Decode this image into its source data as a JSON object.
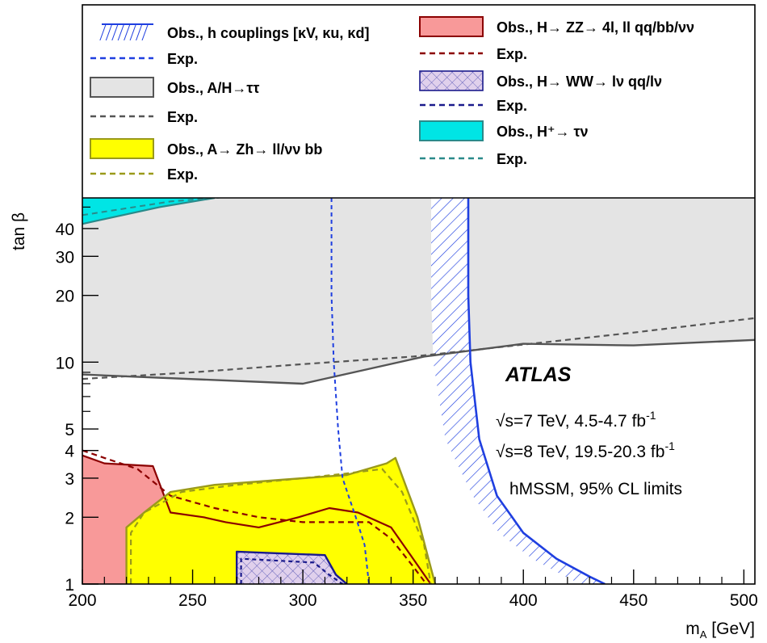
{
  "chart_data": {
    "type": "area",
    "title": "",
    "xlabel": "m_A [GeV]",
    "ylabel": "tan β",
    "xlim": [
      200,
      505
    ],
    "ylim": [
      1,
      55
    ],
    "y_scale": "log",
    "grid": false,
    "legend_position": "top",
    "x_ticks": [
      "200",
      "250",
      "300",
      "350",
      "400",
      "450",
      "500"
    ],
    "y_ticks": [
      "1",
      "2",
      "3",
      "4",
      "5",
      "10",
      "20",
      "30",
      "40"
    ],
    "annotations": {
      "experiment": "ATLAS",
      "line1_pre": "s=7 TeV, 4.5-4.7 fb",
      "line1_sup": "-1",
      "line2_pre": "s=8 TeV, 19.5-20.3 fb",
      "line2_sup": "-1",
      "line3": "hMSSM, 95% CL limits",
      "sqrt_symbol": "√"
    },
    "legend": [
      {
        "key": "h_obs",
        "label": "Obs., h couplings [κV, κu, κd]",
        "style": "hatch",
        "color": "#1f3fe0"
      },
      {
        "key": "h_exp",
        "label": "Exp.",
        "style": "dashed",
        "color": "#1f3fe0"
      },
      {
        "key": "tautau_obs",
        "label": "Obs., A/H→ττ",
        "style": "fill",
        "color": "#e4e4e4",
        "line": "#555555"
      },
      {
        "key": "tautau_exp",
        "label": "Exp.",
        "style": "dashed",
        "color": "#555555"
      },
      {
        "key": "azh_obs",
        "label": "Obs., A→ Zh→ ll/νν bb",
        "style": "fill",
        "color": "#ffff00",
        "line": "#9a9a1a"
      },
      {
        "key": "azh_exp",
        "label": "Exp.",
        "style": "dashed",
        "color": "#9a9a1a"
      },
      {
        "key": "zz_obs",
        "label": "Obs., H→ ZZ→ 4l, ll qq/bb/νν",
        "style": "fill",
        "color": "#f89999",
        "line": "#8b0000"
      },
      {
        "key": "zz_exp",
        "label": "Exp.",
        "style": "dashed",
        "color": "#8b0000"
      },
      {
        "key": "ww_obs",
        "label": "Obs., H→ WW→ lν qq/lν",
        "style": "crosshatch",
        "color": "#1a1a8c"
      },
      {
        "key": "ww_exp",
        "label": "Exp.",
        "style": "dashed",
        "color": "#1a1a8c"
      },
      {
        "key": "hplus_obs",
        "label": "Obs., H⁺→ τν",
        "style": "fill",
        "color": "#00e5e5",
        "line": "#2a8a8a"
      },
      {
        "key": "hplus_exp",
        "label": "Exp.",
        "style": "dashed",
        "color": "#2a8a8a"
      }
    ],
    "series": [
      {
        "key": "tautau_obs",
        "x": [
          200,
          300,
          355,
          400,
          450,
          505
        ],
        "y": [
          8.8,
          8.0,
          10.6,
          12.1,
          11.9,
          12.6
        ]
      },
      {
        "key": "tautau_exp",
        "x": [
          200,
          250,
          300,
          350,
          400,
          450,
          505
        ],
        "y": [
          8.4,
          9.0,
          9.8,
          10.6,
          12.0,
          13.6,
          15.8
        ]
      },
      {
        "key": "hplus_obs",
        "x": [
          200,
          235,
          260
        ],
        "y": [
          42,
          50,
          55
        ]
      },
      {
        "key": "hplus_exp",
        "x": [
          200,
          240,
          270
        ],
        "y": [
          46,
          53,
          56
        ]
      },
      {
        "key": "zz_obs",
        "x": [
          200,
          210,
          232,
          240,
          255,
          265,
          280,
          298,
          312,
          325,
          340,
          350,
          358
        ],
        "y": [
          3.8,
          3.5,
          3.4,
          2.1,
          2.0,
          1.9,
          1.8,
          2.0,
          2.2,
          2.1,
          1.8,
          1.3,
          1.0
        ]
      },
      {
        "key": "zz_exp",
        "x": [
          200,
          210,
          225,
          240,
          260,
          280,
          300,
          315,
          330,
          340,
          350,
          356
        ],
        "y": [
          4.0,
          3.7,
          3.3,
          2.5,
          2.2,
          2.0,
          1.9,
          1.9,
          1.9,
          1.6,
          1.2,
          1.0
        ]
      },
      {
        "key": "azh_obs",
        "x": [
          220,
          220,
          228,
          240,
          260,
          290,
          320,
          338,
          342,
          352,
          360
        ],
        "y": [
          1.0,
          1.8,
          2.1,
          2.6,
          2.8,
          2.95,
          3.1,
          3.5,
          3.7,
          2.0,
          1.0
        ]
      },
      {
        "key": "azh_exp",
        "x": [
          222,
          222,
          228,
          245,
          270,
          300,
          320,
          336,
          345,
          355,
          358
        ],
        "y": [
          1.0,
          1.7,
          2.1,
          2.6,
          2.8,
          3.0,
          3.15,
          3.3,
          2.6,
          1.5,
          1.0
        ]
      },
      {
        "key": "ww_obs",
        "x": [
          270,
          270,
          310,
          315,
          320
        ],
        "y": [
          1.0,
          1.4,
          1.35,
          1.1,
          1.0
        ]
      },
      {
        "key": "ww_exp",
        "x": [
          272,
          272,
          305,
          312,
          318
        ],
        "y": [
          1.0,
          1.3,
          1.25,
          1.1,
          1.0
        ]
      },
      {
        "key": "h_obs",
        "x": [
          375,
          375,
          376,
          380,
          388,
          400,
          415,
          430,
          437
        ],
        "y": [
          55,
          20,
          10,
          4.5,
          2.5,
          1.7,
          1.3,
          1.08,
          1.0
        ]
      },
      {
        "key": "h_exp",
        "x": [
          313,
          313,
          314,
          316,
          318,
          324,
          328,
          330
        ],
        "y": [
          55,
          20,
          10,
          5,
          3,
          2,
          1.5,
          1.0
        ]
      }
    ]
  }
}
